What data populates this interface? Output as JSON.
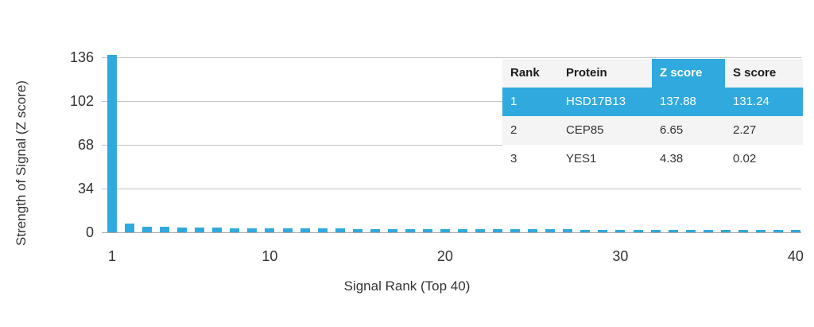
{
  "accent_color": "#30A9DE",
  "chart": {
    "ylabel": "Strength of Signal (Z score)",
    "xlabel": "Signal Rank (Top 40)",
    "bar_color": "#30A9DE",
    "grid_color": "#c4c4c4"
  },
  "chart_data": {
    "type": "bar",
    "title": "",
    "xlabel": "Signal Rank (Top 40)",
    "ylabel": "Strength of Signal (Z score)",
    "x": [
      1,
      2,
      3,
      4,
      5,
      6,
      7,
      8,
      9,
      10,
      11,
      12,
      13,
      14,
      15,
      16,
      17,
      18,
      19,
      20,
      21,
      22,
      23,
      24,
      25,
      26,
      27,
      28,
      29,
      30,
      31,
      32,
      33,
      34,
      35,
      36,
      37,
      38,
      39,
      40
    ],
    "values": [
      137.88,
      6.65,
      4.38,
      4.1,
      3.9,
      3.8,
      3.6,
      3.4,
      3.3,
      3.2,
      3.0,
      2.9,
      2.8,
      2.8,
      2.7,
      2.6,
      2.6,
      2.5,
      2.5,
      2.4,
      2.4,
      2.3,
      2.3,
      2.3,
      2.2,
      2.2,
      2.2,
      2.1,
      2.1,
      2.1,
      2.0,
      2.0,
      2.0,
      2.0,
      1.9,
      1.9,
      1.9,
      1.9,
      1.8,
      1.8
    ],
    "yticks": [
      0,
      34,
      68,
      102,
      136
    ],
    "xticks": [
      1,
      10,
      20,
      30,
      40
    ],
    "ylim": [
      0,
      136
    ],
    "grid": "horizontal-only",
    "legend": "none",
    "bar_color": "#30A9DE"
  },
  "table": {
    "headers": [
      "Rank",
      "Protein",
      "Z score",
      "S score"
    ],
    "highlight_header_index": 2,
    "highlight_color": "#30A9DE",
    "rows": [
      {
        "rank": "1",
        "protein": "HSD17B13",
        "z": "137.88",
        "s": "131.24",
        "highlight": true
      },
      {
        "rank": "2",
        "protein": "CEP85",
        "z": "6.65",
        "s": "2.27",
        "highlight": false
      },
      {
        "rank": "3",
        "protein": "YES1",
        "z": "4.38",
        "s": "0.02",
        "highlight": false
      }
    ]
  }
}
